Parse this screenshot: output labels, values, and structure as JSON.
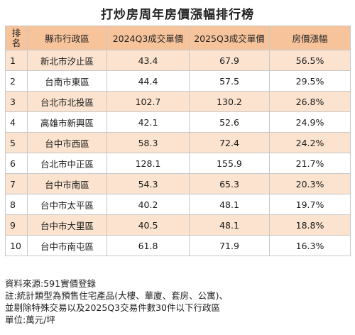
{
  "title": "打炒房周年房價漲幅排行榜",
  "table": {
    "headers": {
      "rank_line1": "排",
      "rank_line2": "名",
      "district": "縣市行政區",
      "price_2024": "2024Q3成交單價",
      "price_2025": "2025Q3成交單價",
      "growth": "房價漲幅"
    },
    "rows": [
      {
        "rank": "1",
        "district": "新北市汐止區",
        "price_2024": "43.4",
        "price_2025": "67.9",
        "growth": "56.5%"
      },
      {
        "rank": "2",
        "district": "台南市東區",
        "price_2024": "44.4",
        "price_2025": "57.5",
        "growth": "29.5%"
      },
      {
        "rank": "3",
        "district": "台北市北投區",
        "price_2024": "102.7",
        "price_2025": "130.2",
        "growth": "26.8%"
      },
      {
        "rank": "4",
        "district": "高雄市新興區",
        "price_2024": "42.1",
        "price_2025": "52.6",
        "growth": "24.9%"
      },
      {
        "rank": "5",
        "district": "台中市西區",
        "price_2024": "58.3",
        "price_2025": "72.4",
        "growth": "24.2%"
      },
      {
        "rank": "6",
        "district": "台北市中正區",
        "price_2024": "128.1",
        "price_2025": "155.9",
        "growth": "21.7%"
      },
      {
        "rank": "7",
        "district": "台中市南區",
        "price_2024": "54.3",
        "price_2025": "65.3",
        "growth": "20.3%"
      },
      {
        "rank": "8",
        "district": "台中市太平區",
        "price_2024": "40.2",
        "price_2025": "48.1",
        "growth": "19.7%"
      },
      {
        "rank": "9",
        "district": "台中市大里區",
        "price_2024": "40.5",
        "price_2025": "48.1",
        "growth": "18.8%"
      },
      {
        "rank": "10",
        "district": "台中市南屯區",
        "price_2024": "61.8",
        "price_2025": "71.9",
        "growth": "16.3%"
      }
    ]
  },
  "notes": {
    "source": "資料來源:591實價登錄",
    "note_line1": "註:統計類型為預售住宅產品(大樓、華廈、套房、公寓)、",
    "note_line2": "並剔除特殊交易以及2025Q3交易件數30件以下行政區",
    "unit": "單位:萬元/坪"
  },
  "colors": {
    "header_bg": "#f7c39a",
    "odd_row_bg": "#fbe3cf",
    "even_row_bg": "#ffffff",
    "border": "#c9c9c9"
  }
}
